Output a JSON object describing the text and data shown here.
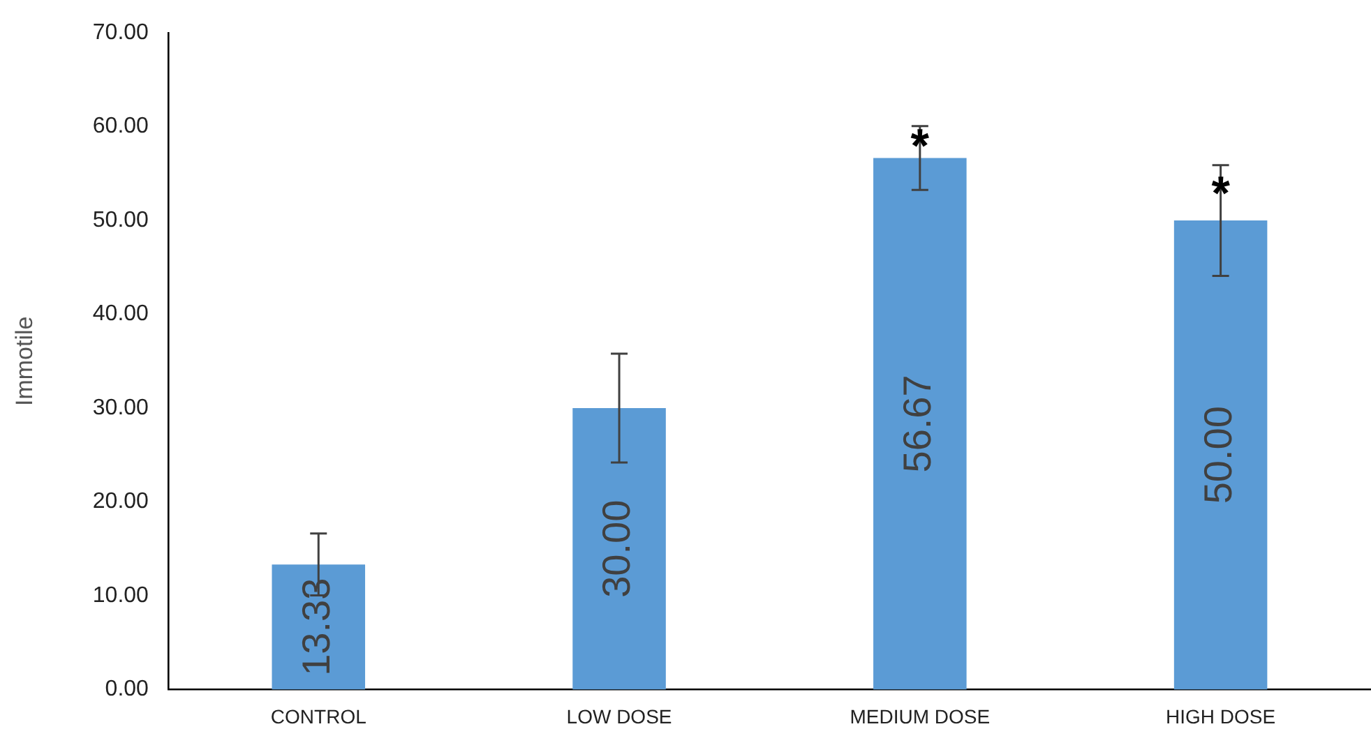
{
  "chart_data": {
    "type": "bar",
    "ylabel": "Immotile",
    "categories": [
      "CONTROL",
      "LOW DOSE",
      "MEDIUM DOSE",
      "HIGH DOSE"
    ],
    "values": [
      13.33,
      30.0,
      56.67,
      50.0
    ],
    "color": "#5b9bd5",
    "errors": [
      3.3,
      5.8,
      3.4,
      5.9
    ],
    "value_labels": [
      "13.33",
      "30.00",
      "56.67",
      "50.00"
    ],
    "ylim": [
      0,
      70
    ],
    "yticks": [
      {
        "value": 0,
        "label": "0.00"
      },
      {
        "value": 10,
        "label": "10.00"
      },
      {
        "value": 20,
        "label": "20.00"
      },
      {
        "value": 30,
        "label": "30.00"
      },
      {
        "value": 40,
        "label": "40.00"
      },
      {
        "value": 50,
        "label": "50.00"
      },
      {
        "value": 60,
        "label": "60.00"
      },
      {
        "value": 70,
        "label": "70.00"
      }
    ],
    "grid": false,
    "legend": false,
    "annotations": [
      {
        "text": "*",
        "x": "MEDIUM DOSE",
        "y": 59.5
      },
      {
        "text": "*",
        "x": "HIGH DOSE",
        "y": 54.5
      }
    ]
  }
}
